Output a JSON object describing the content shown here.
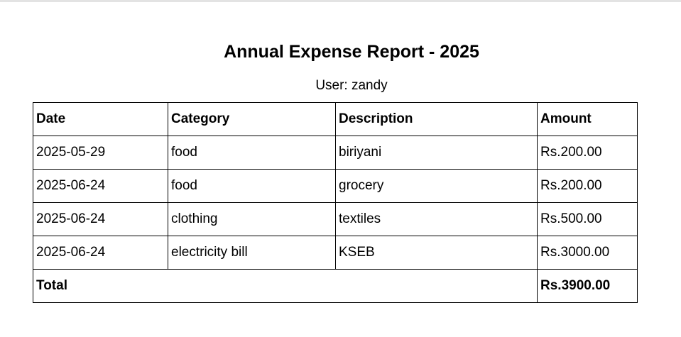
{
  "report": {
    "title": "Annual Expense Report - 2025",
    "user_line": "User: zandy"
  },
  "table": {
    "headers": [
      "Date",
      "Category",
      "Description",
      "Amount"
    ],
    "rows": [
      {
        "date": "2025-05-29",
        "category": "food",
        "description": "biriyani",
        "amount": "Rs.200.00"
      },
      {
        "date": "2025-06-24",
        "category": "food",
        "description": "grocery",
        "amount": "Rs.200.00"
      },
      {
        "date": "2025-06-24",
        "category": "clothing",
        "description": "textiles",
        "amount": "Rs.500.00"
      },
      {
        "date": "2025-06-24",
        "category": "electricity bill",
        "description": "KSEB",
        "amount": "Rs.3000.00"
      }
    ],
    "total_label": "Total",
    "total_amount": "Rs.3900.00"
  }
}
